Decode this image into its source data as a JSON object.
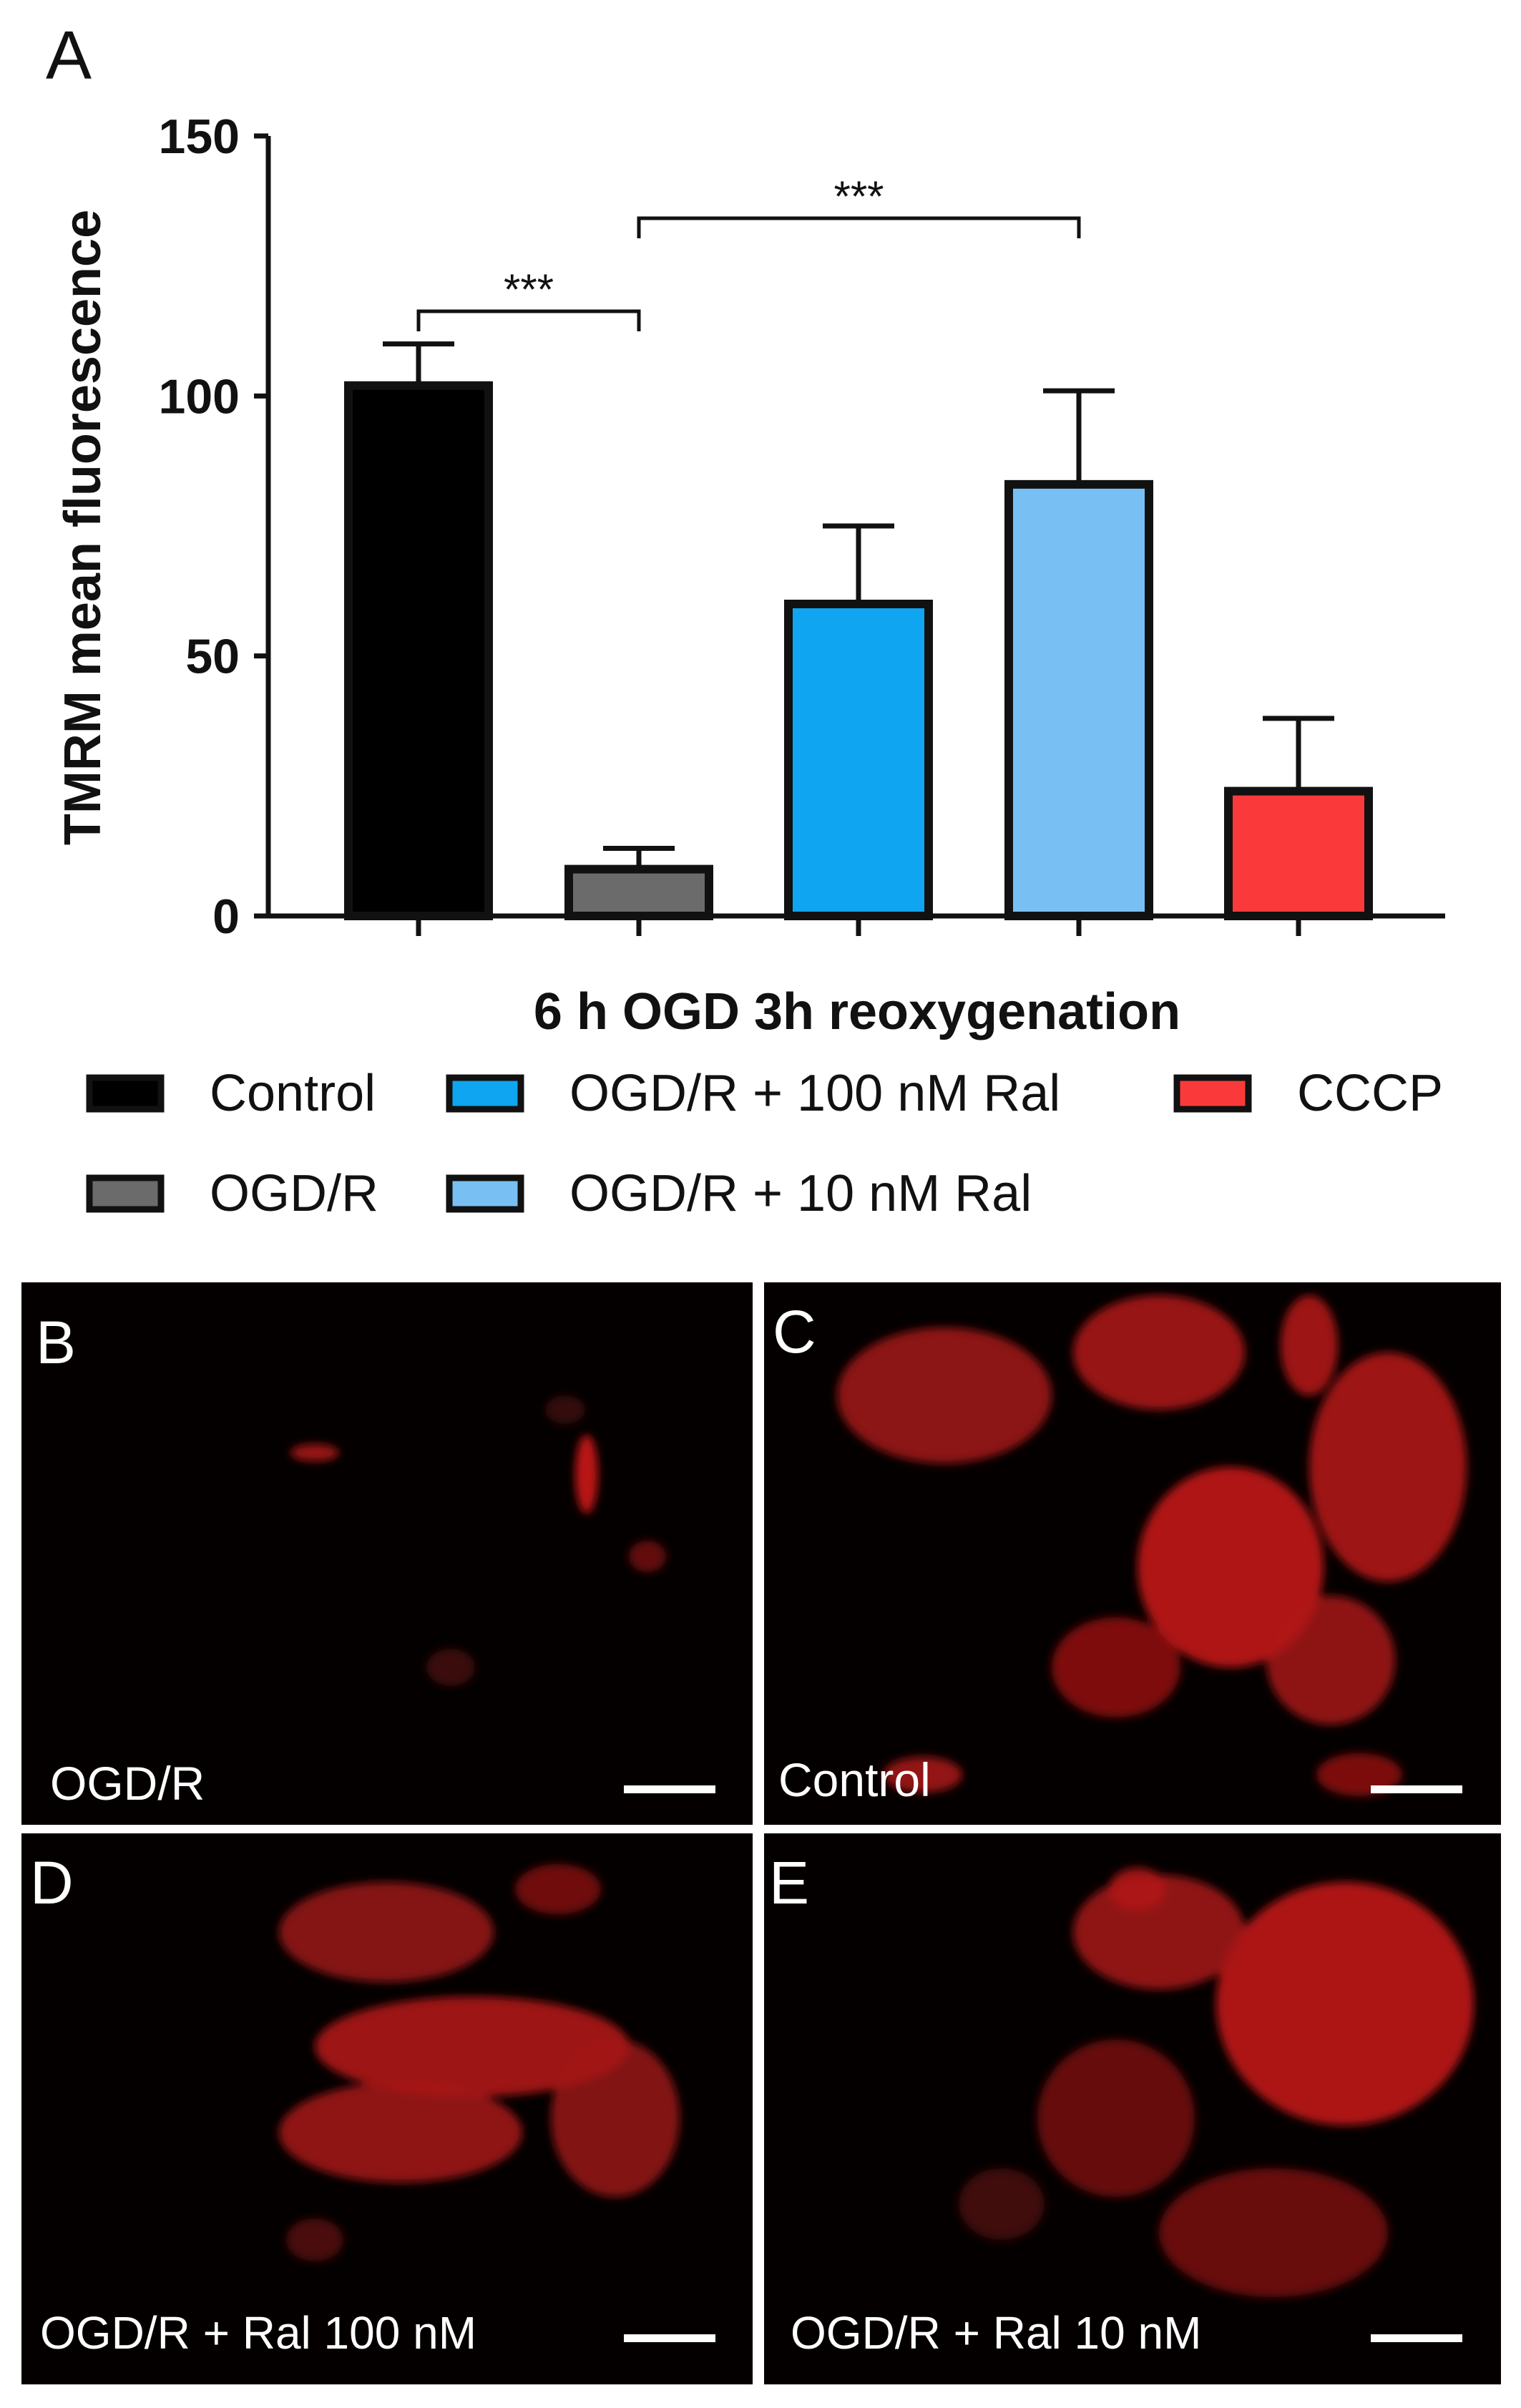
{
  "panel_letters": [
    "A",
    "B",
    "C",
    "D",
    "E"
  ],
  "chart_data": {
    "type": "bar",
    "xlabel": "6 h OGD 3h reoxygenation",
    "ylabel": "TMRM mean fluorescence",
    "ylim": [
      0,
      150
    ],
    "yticks": [
      "0",
      "50",
      "100",
      "150"
    ],
    "grid": false,
    "legend_position": "bottom",
    "categories": [
      "Control",
      "OGD/R",
      "OGD/R + 100 nM Ral",
      "OGD/R + 10 nM Ral",
      "CCCP"
    ],
    "legend_order": [
      "Control",
      "OGD/R + 100 nM Ral",
      "CCCP",
      "OGD/R",
      "OGD/R + 10 nM Ral"
    ],
    "values": [
      102,
      9,
      60,
      83,
      24
    ],
    "errors": [
      8,
      4,
      15,
      18,
      14
    ],
    "colors": [
      "#000000",
      "#6b6b6b",
      "#0fa5f0",
      "#78c0f3",
      "#fa3a3a"
    ],
    "significance": [
      {
        "from": 0,
        "to": 1,
        "label": "***"
      },
      {
        "from": 1,
        "to": 3,
        "label": "***"
      }
    ]
  },
  "micrographs": [
    {
      "letter": "B",
      "label": "OGD/R"
    },
    {
      "letter": "C",
      "label": "Control"
    },
    {
      "letter": "D",
      "label": "OGD/R + Ral 100 nM"
    },
    {
      "letter": "E",
      "label": "OGD/R + Ral 10 nM"
    }
  ]
}
